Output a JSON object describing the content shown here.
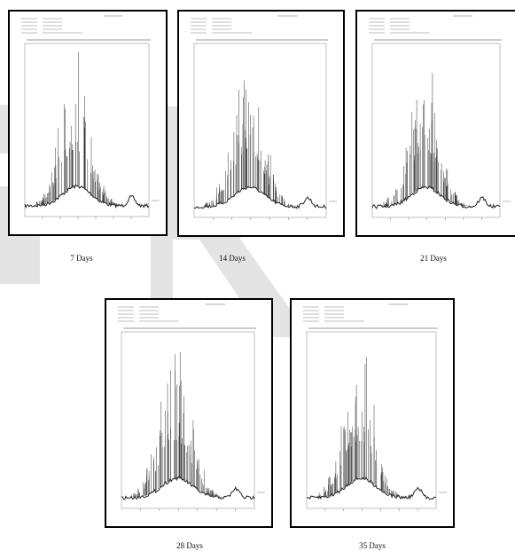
{
  "figure": {
    "panels": [
      {
        "caption": "7 Days"
      },
      {
        "caption": "14 Days"
      },
      {
        "caption": "21 Days"
      },
      {
        "caption": "28 Days"
      },
      {
        "caption": "35 Days"
      }
    ]
  }
}
